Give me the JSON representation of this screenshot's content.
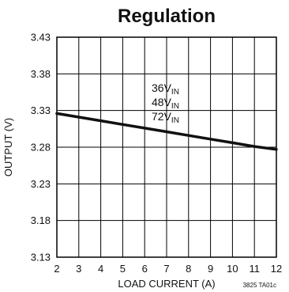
{
  "chart_data": {
    "type": "line",
    "title": "Regulation",
    "xlabel": "LOAD CURRENT (A)",
    "ylabel": "OUTPUT (V)",
    "xlim": [
      2,
      12
    ],
    "ylim": [
      3.13,
      3.43
    ],
    "x_ticks": [
      "2",
      "3",
      "4",
      "5",
      "6",
      "7",
      "8",
      "9",
      "10",
      "11",
      "12"
    ],
    "y_ticks": [
      "3.13",
      "3.18",
      "3.23",
      "3.28",
      "3.33",
      "3.38",
      "3.43"
    ],
    "grid": true,
    "annotations": [
      {
        "text": "36V",
        "sub": "IN"
      },
      {
        "text": "48V",
        "sub": "IN"
      },
      {
        "text": "72V",
        "sub": "IN"
      }
    ],
    "series": [
      {
        "x": [
          2,
          3,
          4,
          5,
          6,
          7,
          8,
          9,
          10,
          11,
          12
        ],
        "values": [
          3.326,
          3.321,
          3.316,
          3.311,
          3.306,
          3.301,
          3.296,
          3.291,
          3.286,
          3.281,
          3.277
        ]
      }
    ],
    "footnote": "3825 TA01c"
  }
}
